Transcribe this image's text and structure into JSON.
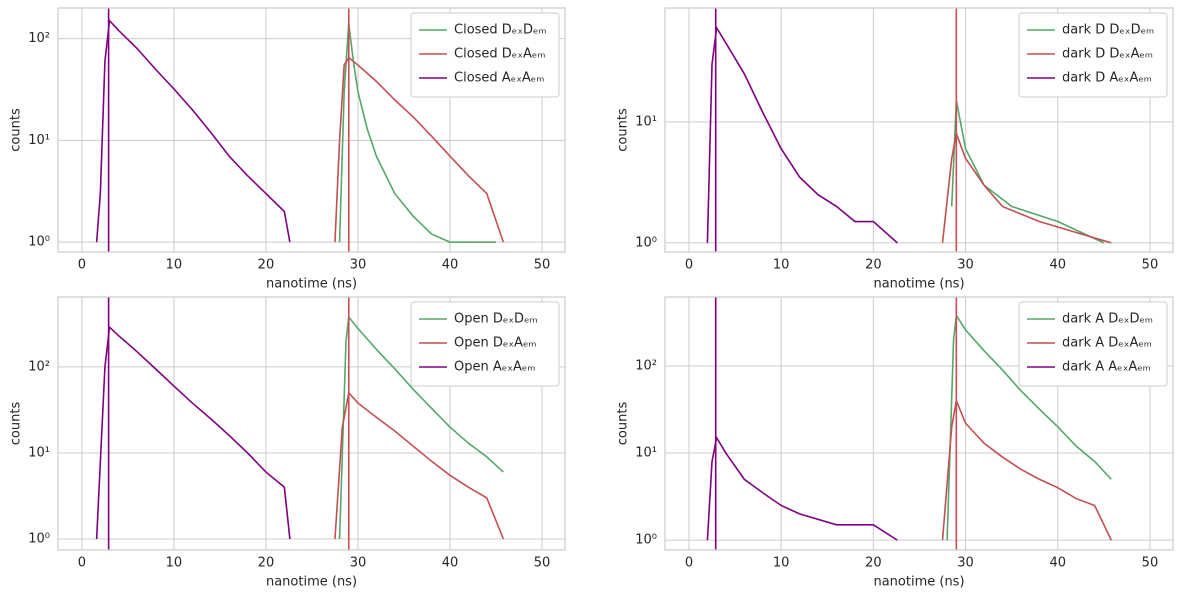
{
  "chart_data": [
    {
      "type": "line",
      "xlabel": "nanotime (ns)",
      "ylabel": "counts",
      "yscale": "log",
      "grid": true,
      "legend": "upper right",
      "xlim": [
        -2.6,
        52.5
      ],
      "xticks": [
        0,
        10,
        20,
        30,
        40,
        50
      ],
      "ylim": [
        0.8,
        200
      ],
      "yticks": [
        {
          "value": 1,
          "label": "10⁰"
        },
        {
          "value": 10,
          "label": "10¹"
        },
        {
          "value": 100,
          "label": "10²"
        }
      ],
      "series": [
        {
          "name": "Closed DₑₓDₑₘ",
          "color": "#55a868",
          "x": [
            28,
            28.5,
            29,
            29.5,
            30,
            31,
            32,
            34,
            36,
            38,
            40,
            45
          ],
          "values": [
            1,
            30,
            140,
            60,
            30,
            13,
            7,
            3,
            1.8,
            1.2,
            1,
            1
          ]
        },
        {
          "name": "Closed DₑₓAₑₘ",
          "color": "#c44e52",
          "x": [
            27.5,
            28,
            28.5,
            29,
            30,
            32,
            34,
            36,
            38,
            40,
            42,
            44,
            45.8
          ],
          "values": [
            1,
            10,
            55,
            65,
            55,
            38,
            25,
            17,
            11,
            7,
            4.5,
            3,
            1
          ]
        },
        {
          "name": "Closed AₑₓAₑₘ",
          "color": "#800080",
          "x": [
            1.6,
            2,
            2.5,
            3,
            4,
            6,
            8,
            10,
            12,
            14,
            16,
            18,
            20,
            22,
            22.6
          ],
          "values": [
            1,
            3,
            60,
            150,
            120,
            80,
            50,
            32,
            20,
            12,
            7,
            4.5,
            3,
            2,
            1
          ]
        }
      ],
      "vlines": [
        {
          "x": 2.9,
          "color": "#800080"
        },
        {
          "x": 29,
          "color": "#c44e52"
        }
      ]
    },
    {
      "type": "line",
      "xlabel": "nanotime (ns)",
      "ylabel": "counts",
      "yscale": "log",
      "grid": true,
      "legend": "upper right",
      "xlim": [
        -2.6,
        52.5
      ],
      "xticks": [
        0,
        10,
        20,
        30,
        40,
        50
      ],
      "ylim": [
        0.84,
        87.5
      ],
      "yticks": [
        {
          "value": 1,
          "label": "10⁰"
        },
        {
          "value": 10,
          "label": "10¹"
        }
      ],
      "series": [
        {
          "name": "dark D DₑₓDₑₘ",
          "color": "#55a868",
          "x": [
            28.5,
            29,
            30,
            32,
            35,
            40,
            45
          ],
          "values": [
            2,
            15,
            6,
            3,
            2,
            1.5,
            1
          ]
        },
        {
          "name": "dark D DₑₓAₑₘ",
          "color": "#c44e52",
          "x": [
            27.5,
            28.5,
            29,
            30,
            32,
            34,
            38,
            45.8
          ],
          "values": [
            1,
            5,
            8,
            5,
            3,
            2,
            1.5,
            1
          ]
        },
        {
          "name": "dark D AₑₓAₑₘ",
          "color": "#800080",
          "x": [
            2,
            2.5,
            3,
            4,
            6,
            8,
            10,
            12,
            14,
            16,
            18,
            20,
            22.6
          ],
          "values": [
            1,
            30,
            60,
            45,
            25,
            12,
            6,
            3.5,
            2.5,
            2,
            1.5,
            1.5,
            1
          ]
        }
      ],
      "vlines": [
        {
          "x": 2.9,
          "color": "#800080"
        },
        {
          "x": 29,
          "color": "#c44e52"
        }
      ]
    },
    {
      "type": "line",
      "xlabel": "nanotime (ns)",
      "ylabel": "counts",
      "yscale": "log",
      "grid": true,
      "legend": "upper right",
      "xlim": [
        -2.6,
        52.5
      ],
      "xticks": [
        0,
        10,
        20,
        30,
        40,
        50
      ],
      "ylim": [
        0.745,
        650
      ],
      "yticks": [
        {
          "value": 1,
          "label": "10⁰"
        },
        {
          "value": 10,
          "label": "10¹"
        },
        {
          "value": 100,
          "label": "10²"
        }
      ],
      "series": [
        {
          "name": "Open DₑₓDₑₘ",
          "color": "#55a868",
          "x": [
            28,
            28.7,
            29,
            30,
            32,
            34,
            36,
            38,
            40,
            42,
            44,
            45.8
          ],
          "values": [
            1,
            200,
            380,
            280,
            160,
            95,
            55,
            33,
            20,
            13,
            9,
            6
          ]
        },
        {
          "name": "Open DₑₓAₑₘ",
          "color": "#c44e52",
          "x": [
            27.5,
            28.3,
            29,
            30,
            32,
            34,
            36,
            38,
            40,
            42,
            44,
            45.8
          ],
          "values": [
            1,
            20,
            50,
            38,
            26,
            18,
            12,
            8,
            5.5,
            4,
            3,
            1
          ]
        },
        {
          "name": "Open AₑₓAₑₘ",
          "color": "#800080",
          "x": [
            1.6,
            2.5,
            3,
            4,
            6,
            8,
            10,
            12,
            14,
            16,
            18,
            20,
            22,
            22.6
          ],
          "values": [
            1,
            100,
            290,
            230,
            150,
            95,
            60,
            38,
            25,
            16,
            10,
            6,
            4,
            1
          ]
        }
      ],
      "vlines": [
        {
          "x": 2.9,
          "color": "#800080"
        },
        {
          "x": 29,
          "color": "#c44e52"
        }
      ]
    },
    {
      "type": "line",
      "xlabel": "nanotime (ns)",
      "ylabel": "counts",
      "yscale": "log",
      "grid": true,
      "legend": "upper right",
      "xlim": [
        -2.6,
        52.5
      ],
      "xticks": [
        0,
        10,
        20,
        30,
        40,
        50
      ],
      "ylim": [
        0.77,
        620
      ],
      "yticks": [
        {
          "value": 1,
          "label": "10⁰"
        },
        {
          "value": 10,
          "label": "10¹"
        },
        {
          "value": 100,
          "label": "10²"
        }
      ],
      "series": [
        {
          "name": "dark A DₑₓDₑₘ",
          "color": "#55a868",
          "x": [
            28,
            28.7,
            29,
            30,
            32,
            34,
            36,
            38,
            40,
            42,
            44,
            45.8
          ],
          "values": [
            1,
            200,
            380,
            260,
            150,
            90,
            52,
            32,
            20,
            12,
            8,
            5
          ]
        },
        {
          "name": "dark A DₑₓAₑₘ",
          "color": "#c44e52",
          "x": [
            27.5,
            28.5,
            29,
            30,
            32,
            34,
            36,
            38,
            40,
            42,
            44,
            45.8
          ],
          "values": [
            1,
            20,
            40,
            22,
            13,
            9,
            6.5,
            5,
            4,
            3,
            2.5,
            1
          ]
        },
        {
          "name": "dark A AₑₓAₑₘ",
          "color": "#800080",
          "x": [
            2,
            2.5,
            3,
            4,
            6,
            8,
            10,
            12,
            16,
            20,
            22.6
          ],
          "values": [
            1,
            8,
            15,
            10,
            5,
            3.5,
            2.5,
            2,
            1.5,
            1.5,
            1
          ]
        }
      ],
      "vlines": [
        {
          "x": 2.9,
          "color": "#800080"
        },
        {
          "x": 29,
          "color": "#c44e52"
        }
      ]
    }
  ]
}
